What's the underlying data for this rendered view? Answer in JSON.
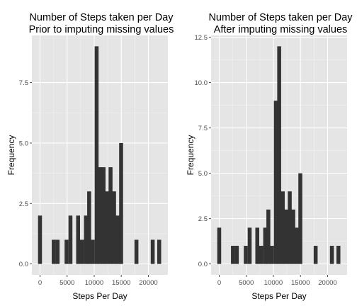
{
  "chart_data": [
    {
      "type": "bar",
      "title": "Number of Steps taken per Day",
      "subtitle": "Prior to imputing missing values",
      "xlabel": "Steps Per Day",
      "ylabel": "Frequency",
      "xlim": [
        -1500,
        23600
      ],
      "ylim": [
        -0.45,
        9.45
      ],
      "xticks": [
        0,
        5000,
        10000,
        15000,
        20000
      ],
      "xtick_labels": [
        "0",
        "5000",
        "10000",
        "15000",
        "20000"
      ],
      "yticks": [
        0,
        2.5,
        5,
        7.5
      ],
      "ytick_labels": [
        "0.0",
        "2.5",
        "5.0",
        "7.5"
      ],
      "grid": true,
      "bin_width": 725,
      "series": [
        {
          "x": [
            0,
            2530,
            3250,
            4900,
            5620,
            7030,
            7750,
            8480,
            9070,
            9720,
            10450,
            11070,
            11730,
            12370,
            13020,
            13670,
            14320,
            14970,
            17800,
            20800,
            22000
          ],
          "values": [
            2,
            1,
            1,
            1,
            2,
            2,
            1,
            2,
            3,
            1,
            9,
            4,
            4,
            3,
            4,
            3,
            2,
            5,
            1,
            1,
            1
          ]
        }
      ],
      "colors": {
        "bar": "#333333",
        "panel": "#e5e5e5",
        "grid": "#ffffff"
      }
    },
    {
      "type": "bar",
      "title": "Number of Steps taken per Day",
      "subtitle": "After imputing missing values",
      "xlabel": "Steps Per Day",
      "ylabel": "Frequency",
      "xlim": [
        -1500,
        23600
      ],
      "ylim": [
        -0.6,
        12.6
      ],
      "xticks": [
        0,
        5000,
        10000,
        15000,
        20000
      ],
      "xtick_labels": [
        "0",
        "5000",
        "10000",
        "15000",
        "20000"
      ],
      "yticks": [
        0,
        2.5,
        5,
        7.5,
        10,
        12.5
      ],
      "ytick_labels": [
        "0.0",
        "2.5",
        "5.0",
        "7.5",
        "10.0",
        "12.5"
      ],
      "grid": true,
      "bin_width": 725,
      "series": [
        {
          "x": [
            0,
            2530,
            3250,
            4900,
            5620,
            7030,
            7750,
            8480,
            9070,
            9720,
            10450,
            11070,
            11730,
            12370,
            13020,
            13670,
            14320,
            14970,
            17800,
            20800,
            22000
          ],
          "values": [
            2,
            1,
            1,
            1,
            2,
            2,
            1,
            2,
            3,
            1,
            9,
            12,
            4,
            3,
            4,
            3,
            2,
            5,
            1,
            1,
            1
          ]
        }
      ],
      "colors": {
        "bar": "#333333",
        "panel": "#e5e5e5",
        "grid": "#ffffff"
      }
    }
  ]
}
